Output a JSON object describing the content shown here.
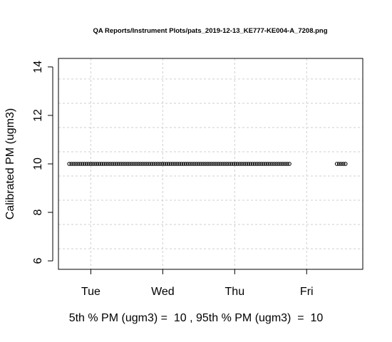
{
  "chart_data": {
    "type": "scatter",
    "title": "QA Reports/Instrument Plots/pats_2019-12-13_KE777-KE004-A_7208.png",
    "xlabel": "",
    "ylabel": "Calibrated PM (ugm3)",
    "x_unit": "days since Monday 00:00",
    "xlim": [
      1.55,
      5.78
    ],
    "ylim": [
      5.65,
      14.35
    ],
    "x_ticks": [
      {
        "value": 2,
        "label": "Tue"
      },
      {
        "value": 3,
        "label": "Wed"
      },
      {
        "value": 4,
        "label": "Thu"
      },
      {
        "value": 5,
        "label": "Fri"
      }
    ],
    "x_grid": [
      2,
      3,
      4,
      5
    ],
    "y_ticks": [
      {
        "value": 6,
        "label": "6"
      },
      {
        "value": 8,
        "label": "8"
      },
      {
        "value": 10,
        "label": "10"
      },
      {
        "value": 12,
        "label": "12"
      },
      {
        "value": 14,
        "label": "14"
      }
    ],
    "y_grid": [
      6.5,
      7.5,
      8.5,
      9.5,
      10.5,
      11.5,
      12.5,
      13.5
    ],
    "grid": true,
    "series": [
      {
        "name": "PM",
        "x_start": 1.7,
        "x_end": 4.77,
        "x_step": 0.03,
        "y": 10
      },
      {
        "name": "PM",
        "x_start": 5.42,
        "x_end": 5.54,
        "x_step": 0.03,
        "y": 10
      }
    ]
  },
  "footer": {
    "text": "5th % PM (ugm3) =  10 , 95th % PM (ugm3)  =  10"
  }
}
